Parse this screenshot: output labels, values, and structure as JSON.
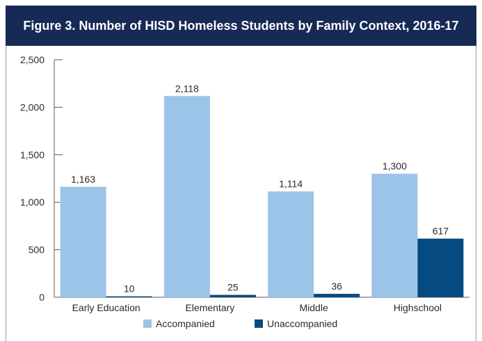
{
  "figure": {
    "title": "Figure 3. Number of HISD Homeless Students by Family Context, 2016-17"
  },
  "colors": {
    "header_bg": "#172a55",
    "accompanied": "#9cc4e8",
    "unaccompanied": "#054a80"
  },
  "chart_data": {
    "type": "bar",
    "title": "Figure 3. Number of HISD Homeless Students by Family Context, 2016-17",
    "xlabel": "",
    "ylabel": "",
    "categories": [
      "Early Education",
      "Elementary",
      "Middle",
      "Highschool"
    ],
    "series": [
      {
        "name": "Accompanied",
        "values": [
          1163,
          2118,
          1114,
          1300
        ],
        "labels": [
          "1,163",
          "2,118",
          "1,114",
          "1,300"
        ]
      },
      {
        "name": "Unaccompanied",
        "values": [
          10,
          25,
          36,
          617
        ],
        "labels": [
          "10",
          "25",
          "36",
          "617"
        ]
      }
    ],
    "ylim": [
      0,
      2500
    ],
    "yticks": [
      0,
      500,
      1000,
      1500,
      2000,
      2500
    ],
    "ytick_labels": [
      "0",
      "500",
      "1,000",
      "1,500",
      "2,000",
      "2,500"
    ],
    "grid": false,
    "legend_position": "bottom"
  }
}
